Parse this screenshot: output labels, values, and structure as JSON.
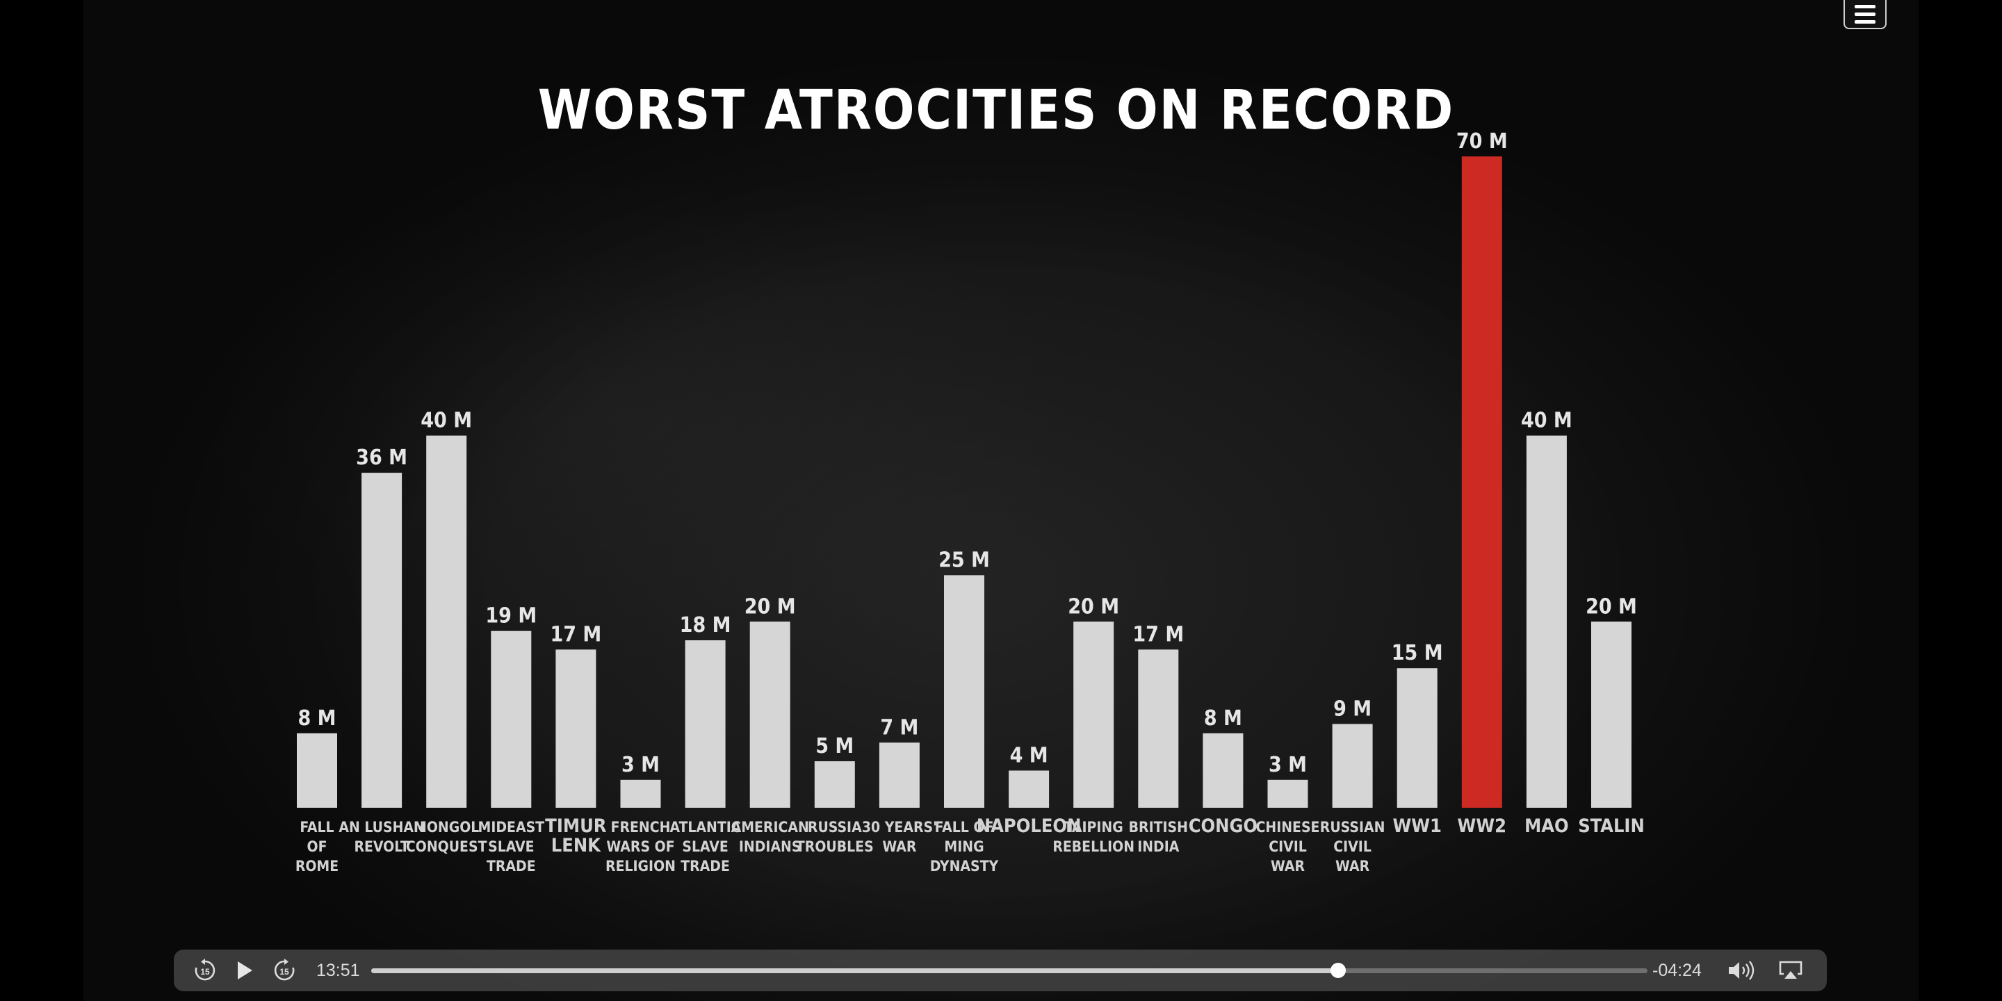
{
  "chart_data": {
    "type": "bar",
    "title": "WORST ATROCITIES ON RECORD",
    "categories": [
      "FALL OF ROME",
      "AN LUSHAN REVOLT",
      "MONGOL CONQUEST",
      "MIDEAST SLAVE TRADE",
      "TIMUR LENK",
      "FRENCH WARS OF RELIGION",
      "ATLANTIC SLAVE TRADE",
      "AMERICAN INDIANS",
      "RUSSIA TROUBLES",
      "30 YEARS' WAR",
      "FALL OF MING DYNASTY",
      "NAPOLEON",
      "TAIPING REBELLION",
      "BRITISH INDIA",
      "CONGO",
      "CHINESE CIVIL WAR",
      "RUSSIAN CIVIL WAR",
      "WW1",
      "WW2",
      "MAO",
      "STALIN"
    ],
    "label_lines": [
      [
        "FALL",
        "OF",
        "ROME"
      ],
      [
        "AN LUSHAN",
        "REVOLT"
      ],
      [
        "MONGOL",
        "CONQUEST"
      ],
      [
        "MIDEAST",
        "SLAVE",
        "TRADE"
      ],
      [
        "TIMUR",
        "LENK"
      ],
      [
        "FRENCH",
        "WARS OF",
        "RELIGION"
      ],
      [
        "ATLANTIC",
        "SLAVE",
        "TRADE"
      ],
      [
        "AMERICAN",
        "INDIANS"
      ],
      [
        "RUSSIA",
        "TROUBLES"
      ],
      [
        "30 YEARS'",
        "WAR"
      ],
      [
        "FALL OF",
        "MING",
        "DYNASTY"
      ],
      [
        "NAPOLEON"
      ],
      [
        "TAIPING",
        "REBELLION"
      ],
      [
        "BRITISH",
        "INDIA"
      ],
      [
        "CONGO"
      ],
      [
        "CHINESE",
        "CIVIL",
        "WAR"
      ],
      [
        "RUSSIAN",
        "CIVIL",
        "WAR"
      ],
      [
        "WW1"
      ],
      [
        "WW2"
      ],
      [
        "MAO"
      ],
      [
        "STALIN"
      ]
    ],
    "values": [
      8,
      36,
      40,
      19,
      17,
      3,
      18,
      20,
      5,
      7,
      25,
      4,
      20,
      17,
      8,
      3,
      9,
      15,
      70,
      40,
      20
    ],
    "value_labels": [
      "8 M",
      "36 M",
      "40 M",
      "19 M",
      "17 M",
      "3 M",
      "18 M",
      "20 M",
      "5 M",
      "7 M",
      "25 M",
      "4 M",
      "20 M",
      "17 M",
      "8 M",
      "3 M",
      "9 M",
      "15 M",
      "70 M",
      "40 M",
      "20 M"
    ],
    "unit": "M",
    "highlight_index": 18,
    "bar_color": "#d6d6d6",
    "highlight_color": "#cc2a22",
    "ylim": [
      0,
      70
    ],
    "grid": false,
    "legend": "none"
  },
  "player": {
    "time_elapsed": "13:51",
    "time_remaining": "-04:24",
    "progress": 0.7577,
    "skip_back_label": "15",
    "skip_forward_label": "15",
    "icons": {
      "skip_back": "skip-back-15-icon",
      "play": "play-icon",
      "skip_forward": "skip-forward-15-icon",
      "volume": "volume-icon",
      "airplay": "airplay-icon",
      "menu": "menu-icon"
    }
  }
}
